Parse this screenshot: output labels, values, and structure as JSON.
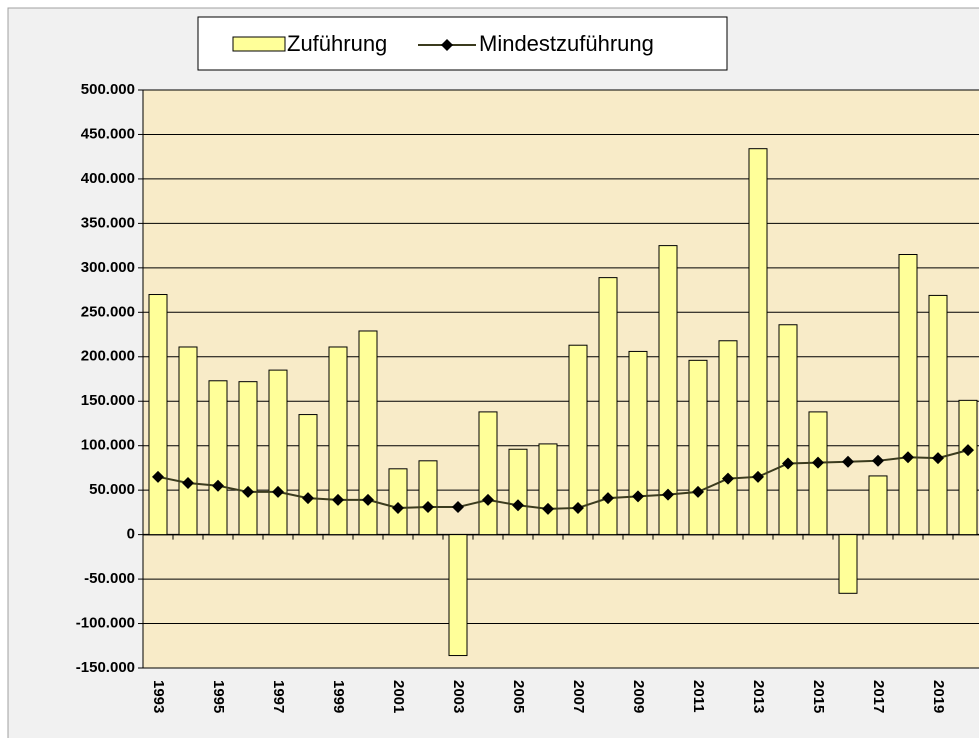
{
  "chart_data": {
    "type": "bar",
    "categories": [
      "1993",
      null,
      "1995",
      null,
      "1997",
      null,
      "1999",
      null,
      "2001",
      null,
      "2003",
      null,
      "2005",
      null,
      "2007",
      null,
      "2009",
      null,
      "2011",
      null,
      "2013",
      null,
      "2015",
      null,
      "2017",
      null,
      "2019",
      null
    ],
    "series": [
      {
        "name": "Zuführung",
        "type": "bar",
        "color": "#ffff99",
        "values": [
          270000,
          211000,
          173000,
          172000,
          185000,
          135000,
          211000,
          229000,
          74000,
          83000,
          -136000,
          138000,
          96000,
          102000,
          213000,
          289000,
          206000,
          325000,
          196000,
          218000,
          434000,
          236000,
          138000,
          -66000,
          66000,
          315000,
          269000,
          151000
        ]
      },
      {
        "name": "Mindestzuführung",
        "type": "line",
        "color": "#3b3b1e",
        "values": [
          65000,
          58000,
          55000,
          48000,
          48000,
          41000,
          39000,
          39000,
          30000,
          31000,
          31000,
          39000,
          33000,
          29000,
          30000,
          41000,
          43000,
          45000,
          48000,
          63000,
          65000,
          80000,
          81000,
          82000,
          83000,
          87000,
          86000,
          95000
        ]
      }
    ],
    "ylim": [
      -150000,
      500000
    ],
    "yticks": [
      {
        "value": -150000,
        "label": "-150.000"
      },
      {
        "value": -100000,
        "label": "-100.000"
      },
      {
        "value": -50000,
        "label": "-50.000"
      },
      0,
      {
        "value": 50000,
        "label": "50.000"
      },
      {
        "value": 100000,
        "label": "100.000"
      },
      {
        "value": 150000,
        "label": "150.000"
      },
      {
        "value": 200000,
        "label": "200.000"
      },
      {
        "value": 250000,
        "label": "250.000"
      },
      {
        "value": 300000,
        "label": "300.000"
      },
      {
        "value": 350000,
        "label": "350.000"
      },
      {
        "value": 400000,
        "label": "400.000"
      },
      {
        "value": 450000,
        "label": "450.000"
      },
      {
        "value": 500000,
        "label": "500.000"
      }
    ],
    "grid": true,
    "legend": "top"
  }
}
